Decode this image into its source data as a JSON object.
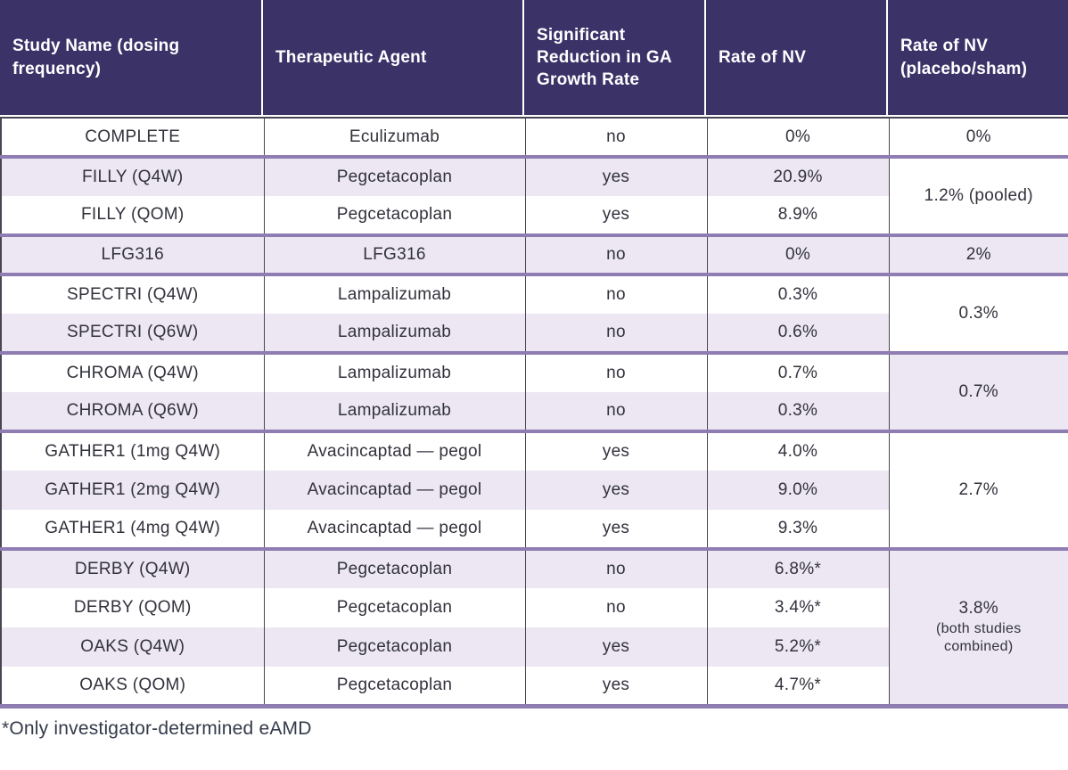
{
  "colors": {
    "header_bg": "#3b3268",
    "header_text": "#ffffff",
    "row_alt_bg": "#ece7f2",
    "group_border": "#8e7cb2",
    "grid_border": "#494552",
    "body_text": "#32323c"
  },
  "table": {
    "columns": [
      "Study Name (dosing frequency)",
      "Therapeutic Agent",
      "Significant Reduction in GA Growth Rate",
      "Rate of NV",
      "Rate of NV (placebo/sham)"
    ],
    "groups": [
      {
        "rows": [
          {
            "study": "COMPLETE",
            "agent": "Eculizumab",
            "sig": "no",
            "rate": "0%"
          }
        ],
        "pooled": "0%"
      },
      {
        "rows": [
          {
            "study": "FILLY (Q4W)",
            "agent": "Pegcetacoplan",
            "sig": "yes",
            "rate": "20.9%"
          },
          {
            "study": "FILLY (QOM)",
            "agent": "Pegcetacoplan",
            "sig": "yes",
            "rate": "8.9%"
          }
        ],
        "pooled": "1.2% (pooled)"
      },
      {
        "rows": [
          {
            "study": "LFG316",
            "agent": "LFG316",
            "sig": "no",
            "rate": "0%"
          }
        ],
        "pooled": "2%"
      },
      {
        "rows": [
          {
            "study": "SPECTRI (Q4W)",
            "agent": "Lampalizumab",
            "sig": "no",
            "rate": "0.3%"
          },
          {
            "study": "SPECTRI (Q6W)",
            "agent": "Lampalizumab",
            "sig": "no",
            "rate": "0.6%"
          }
        ],
        "pooled": "0.3%"
      },
      {
        "rows": [
          {
            "study": "CHROMA (Q4W)",
            "agent": "Lampalizumab",
            "sig": "no",
            "rate": "0.7%"
          },
          {
            "study": "CHROMA (Q6W)",
            "agent": "Lampalizumab",
            "sig": "no",
            "rate": "0.3%"
          }
        ],
        "pooled": "0.7%"
      },
      {
        "rows": [
          {
            "study": "GATHER1 (1mg Q4W)",
            "agent": "Avacincaptad — pegol",
            "sig": "yes",
            "rate": "4.0%"
          },
          {
            "study": "GATHER1 (2mg Q4W)",
            "agent": "Avacincaptad — pegol",
            "sig": "yes",
            "rate": "9.0%"
          },
          {
            "study": "GATHER1 (4mg Q4W)",
            "agent": "Avacincaptad — pegol",
            "sig": "yes",
            "rate": "9.3%"
          }
        ],
        "pooled": "2.7%"
      },
      {
        "rows": [
          {
            "study": "DERBY (Q4W)",
            "agent": "Pegcetacoplan",
            "sig": "no",
            "rate": "6.8%*"
          },
          {
            "study": "DERBY (QOM)",
            "agent": "Pegcetacoplan",
            "sig": "no",
            "rate": "3.4%*"
          },
          {
            "study": "OAKS (Q4W)",
            "agent": "Pegcetacoplan",
            "sig": "yes",
            "rate": "5.2%*"
          },
          {
            "study": "OAKS (QOM)",
            "agent": "Pegcetacoplan",
            "sig": "yes",
            "rate": "4.7%*"
          }
        ],
        "pooled": "3.8%",
        "pooled_note": "(both studies combined)"
      }
    ]
  },
  "footnote": "*Only investigator-determined eAMD"
}
